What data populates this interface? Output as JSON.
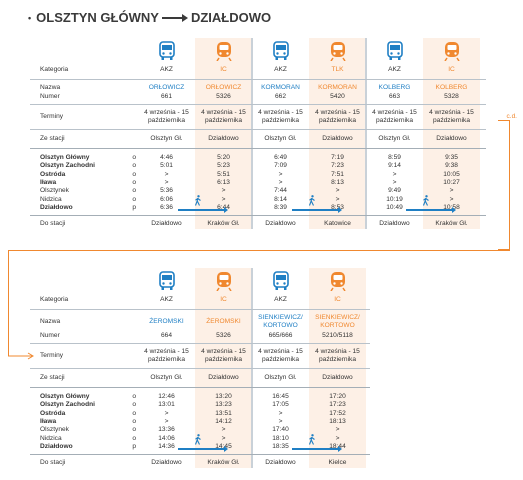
{
  "title": {
    "from": "OLSZTYN GŁÓWNY",
    "to": "DZIAŁDOWO"
  },
  "labels": {
    "kategoria": "Kategoria",
    "nazwa": "Nazwa",
    "numer": "Numer",
    "terminy": "Terminy",
    "ze_stacji": "Ze stacji",
    "do_stacji": "Do stacji",
    "cd": "c.d."
  },
  "stations": [
    {
      "name": "Olsztyn Główny",
      "bold": true,
      "mark": "o"
    },
    {
      "name": "Olsztyn Zachodni",
      "bold": true,
      "mark": "o"
    },
    {
      "name": "Ostróda",
      "bold": true,
      "mark": "o"
    },
    {
      "name": "Iława",
      "bold": true,
      "mark": "o"
    },
    {
      "name": "Olsztynek",
      "bold": false,
      "mark": "o"
    },
    {
      "name": "Nidzica",
      "bold": false,
      "mark": "o"
    },
    {
      "name": "Działdowo",
      "bold": true,
      "mark": "p"
    }
  ],
  "table1": [
    {
      "type": "bus",
      "kategoria": "AKZ",
      "nazwa": "ORŁOWICZ",
      "numer": "661",
      "terminy": "4 września - 15 października",
      "ze_stacji": "Olsztyn Gł.",
      "times": [
        "4:46",
        "5:01",
        ">",
        ">",
        "5:36",
        "6:06",
        "6:36"
      ],
      "do_stacji": "Działdowo"
    },
    {
      "type": "train",
      "kategoria": "IC",
      "nazwa": "ORŁOWICZ",
      "numer": "5326",
      "terminy": "4 września - 15 października",
      "ze_stacji": "Działdowo",
      "times": [
        "5:20",
        "5:23",
        "5:51",
        "6:13",
        ">",
        ">",
        "6:44"
      ],
      "do_stacji": "Kraków Gł."
    },
    {
      "type": "bus",
      "kategoria": "AKZ",
      "nazwa": "KORMORAN",
      "numer": "662",
      "terminy": "4 września - 15 października",
      "ze_stacji": "Olsztyn Gł.",
      "times": [
        "6:49",
        "7:09",
        ">",
        ">",
        "7:44",
        "8:14",
        "8:39"
      ],
      "do_stacji": "Działdowo"
    },
    {
      "type": "train",
      "kategoria": "TLK",
      "nazwa": "KORMORAN",
      "numer": "5420",
      "terminy": "4 września - 15 października",
      "ze_stacji": "Działdowo",
      "times": [
        "7:19",
        "7:23",
        "7:51",
        "8:13",
        ">",
        ">",
        "8:53"
      ],
      "do_stacji": "Katowice"
    },
    {
      "type": "bus",
      "kategoria": "AKZ",
      "nazwa": "KOLBERG",
      "numer": "663",
      "terminy": "4 września - 15 października",
      "ze_stacji": "Olsztyn Gł.",
      "times": [
        "8:59",
        "9:14",
        ">",
        ">",
        "9:49",
        "10:19",
        "10:49"
      ],
      "do_stacji": "Działdowo"
    },
    {
      "type": "train",
      "kategoria": "IC",
      "nazwa": "KOLBERG",
      "numer": "5328",
      "terminy": "4 września - 15 października",
      "ze_stacji": "Działdowo",
      "times": [
        "9:35",
        "9:38",
        "10:05",
        "10:27",
        ">",
        ">",
        "10:58"
      ],
      "do_stacji": "Kraków Gł."
    }
  ],
  "table2": [
    {
      "type": "bus",
      "kategoria": "AKZ",
      "nazwa": "ŻEROMSKI",
      "numer": "664",
      "terminy": "4 września - 15 października",
      "ze_stacji": "Olsztyn Gł.",
      "times": [
        "12:46",
        "13:01",
        ">",
        ">",
        "13:36",
        "14:06",
        "14:36"
      ],
      "do_stacji": "Działdowo"
    },
    {
      "type": "train",
      "kategoria": "IC",
      "nazwa": "ŻEROMSKI",
      "numer": "5326",
      "terminy": "4 września - 15 października",
      "ze_stacji": "Działdowo",
      "times": [
        "13:20",
        "13:23",
        "13:51",
        "14:12",
        ">",
        ">",
        "14:45"
      ],
      "do_stacji": "Kraków Gł."
    },
    {
      "type": "bus",
      "kategoria": "AKZ",
      "nazwa": "SIENKIEWICZ/ KORTOWO",
      "numer": "665/666",
      "terminy": "4 września - 15 października",
      "ze_stacji": "Olsztyn Gł.",
      "times": [
        "16:45",
        "17:05",
        ">",
        ">",
        "17:40",
        "18:10",
        "18:35"
      ],
      "do_stacji": "Działdowo"
    },
    {
      "type": "train",
      "kategoria": "IC",
      "nazwa": "SIENKIEWICZ/ KORTOWO",
      "numer": "5210/5118",
      "terminy": "4 września - 15 października",
      "ze_stacji": "Działdowo",
      "times": [
        "17:20",
        "17:23",
        "17:52",
        "18:13",
        ">",
        ">",
        "18:44"
      ],
      "do_stacji": "Kielce"
    }
  ],
  "colors": {
    "bus": "#1f7fc4",
    "train": "#f0882f"
  }
}
